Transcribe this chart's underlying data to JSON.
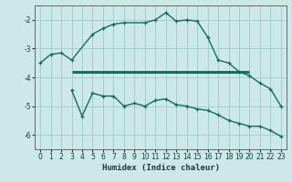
{
  "xlabel": "Humidex (Indice chaleur)",
  "background_color": "#cce8e8",
  "line_color": "#1a6b5a",
  "grid_color": "#99cccc",
  "xlim": [
    -0.5,
    23.5
  ],
  "ylim": [
    -6.5,
    -1.5
  ],
  "yticks": [
    -6,
    -5,
    -4,
    -3,
    -2
  ],
  "xticks": [
    0,
    1,
    2,
    3,
    4,
    5,
    6,
    7,
    8,
    9,
    10,
    11,
    12,
    13,
    14,
    15,
    16,
    17,
    18,
    19,
    20,
    21,
    22,
    23
  ],
  "curve1_x": [
    0,
    1,
    2,
    3,
    5,
    6,
    7,
    8,
    10,
    11,
    12,
    13,
    14,
    15,
    16,
    17,
    18,
    19,
    20,
    21,
    22,
    23
  ],
  "curve1_y": [
    -3.5,
    -3.2,
    -3.15,
    -3.4,
    -2.5,
    -2.3,
    -2.15,
    -2.1,
    -2.1,
    -2.0,
    -1.75,
    -2.05,
    -2.0,
    -2.05,
    -2.6,
    -3.4,
    -3.5,
    -3.8,
    -3.95,
    -4.2,
    -4.4,
    -5.0
  ],
  "hline_y": -3.8,
  "hline_x_start": 3,
  "hline_x_end": 20,
  "curve2_x": [
    3,
    4,
    5,
    6,
    7,
    8,
    9,
    10,
    11,
    12,
    13,
    14,
    15,
    16,
    17,
    18,
    19,
    20,
    21,
    22,
    23
  ],
  "curve2_y": [
    -4.45,
    -5.35,
    -4.55,
    -4.65,
    -4.65,
    -5.0,
    -4.9,
    -5.0,
    -4.8,
    -4.75,
    -4.95,
    -5.0,
    -5.1,
    -5.15,
    -5.3,
    -5.5,
    -5.6,
    -5.7,
    -5.7,
    -5.85,
    -6.05
  ]
}
